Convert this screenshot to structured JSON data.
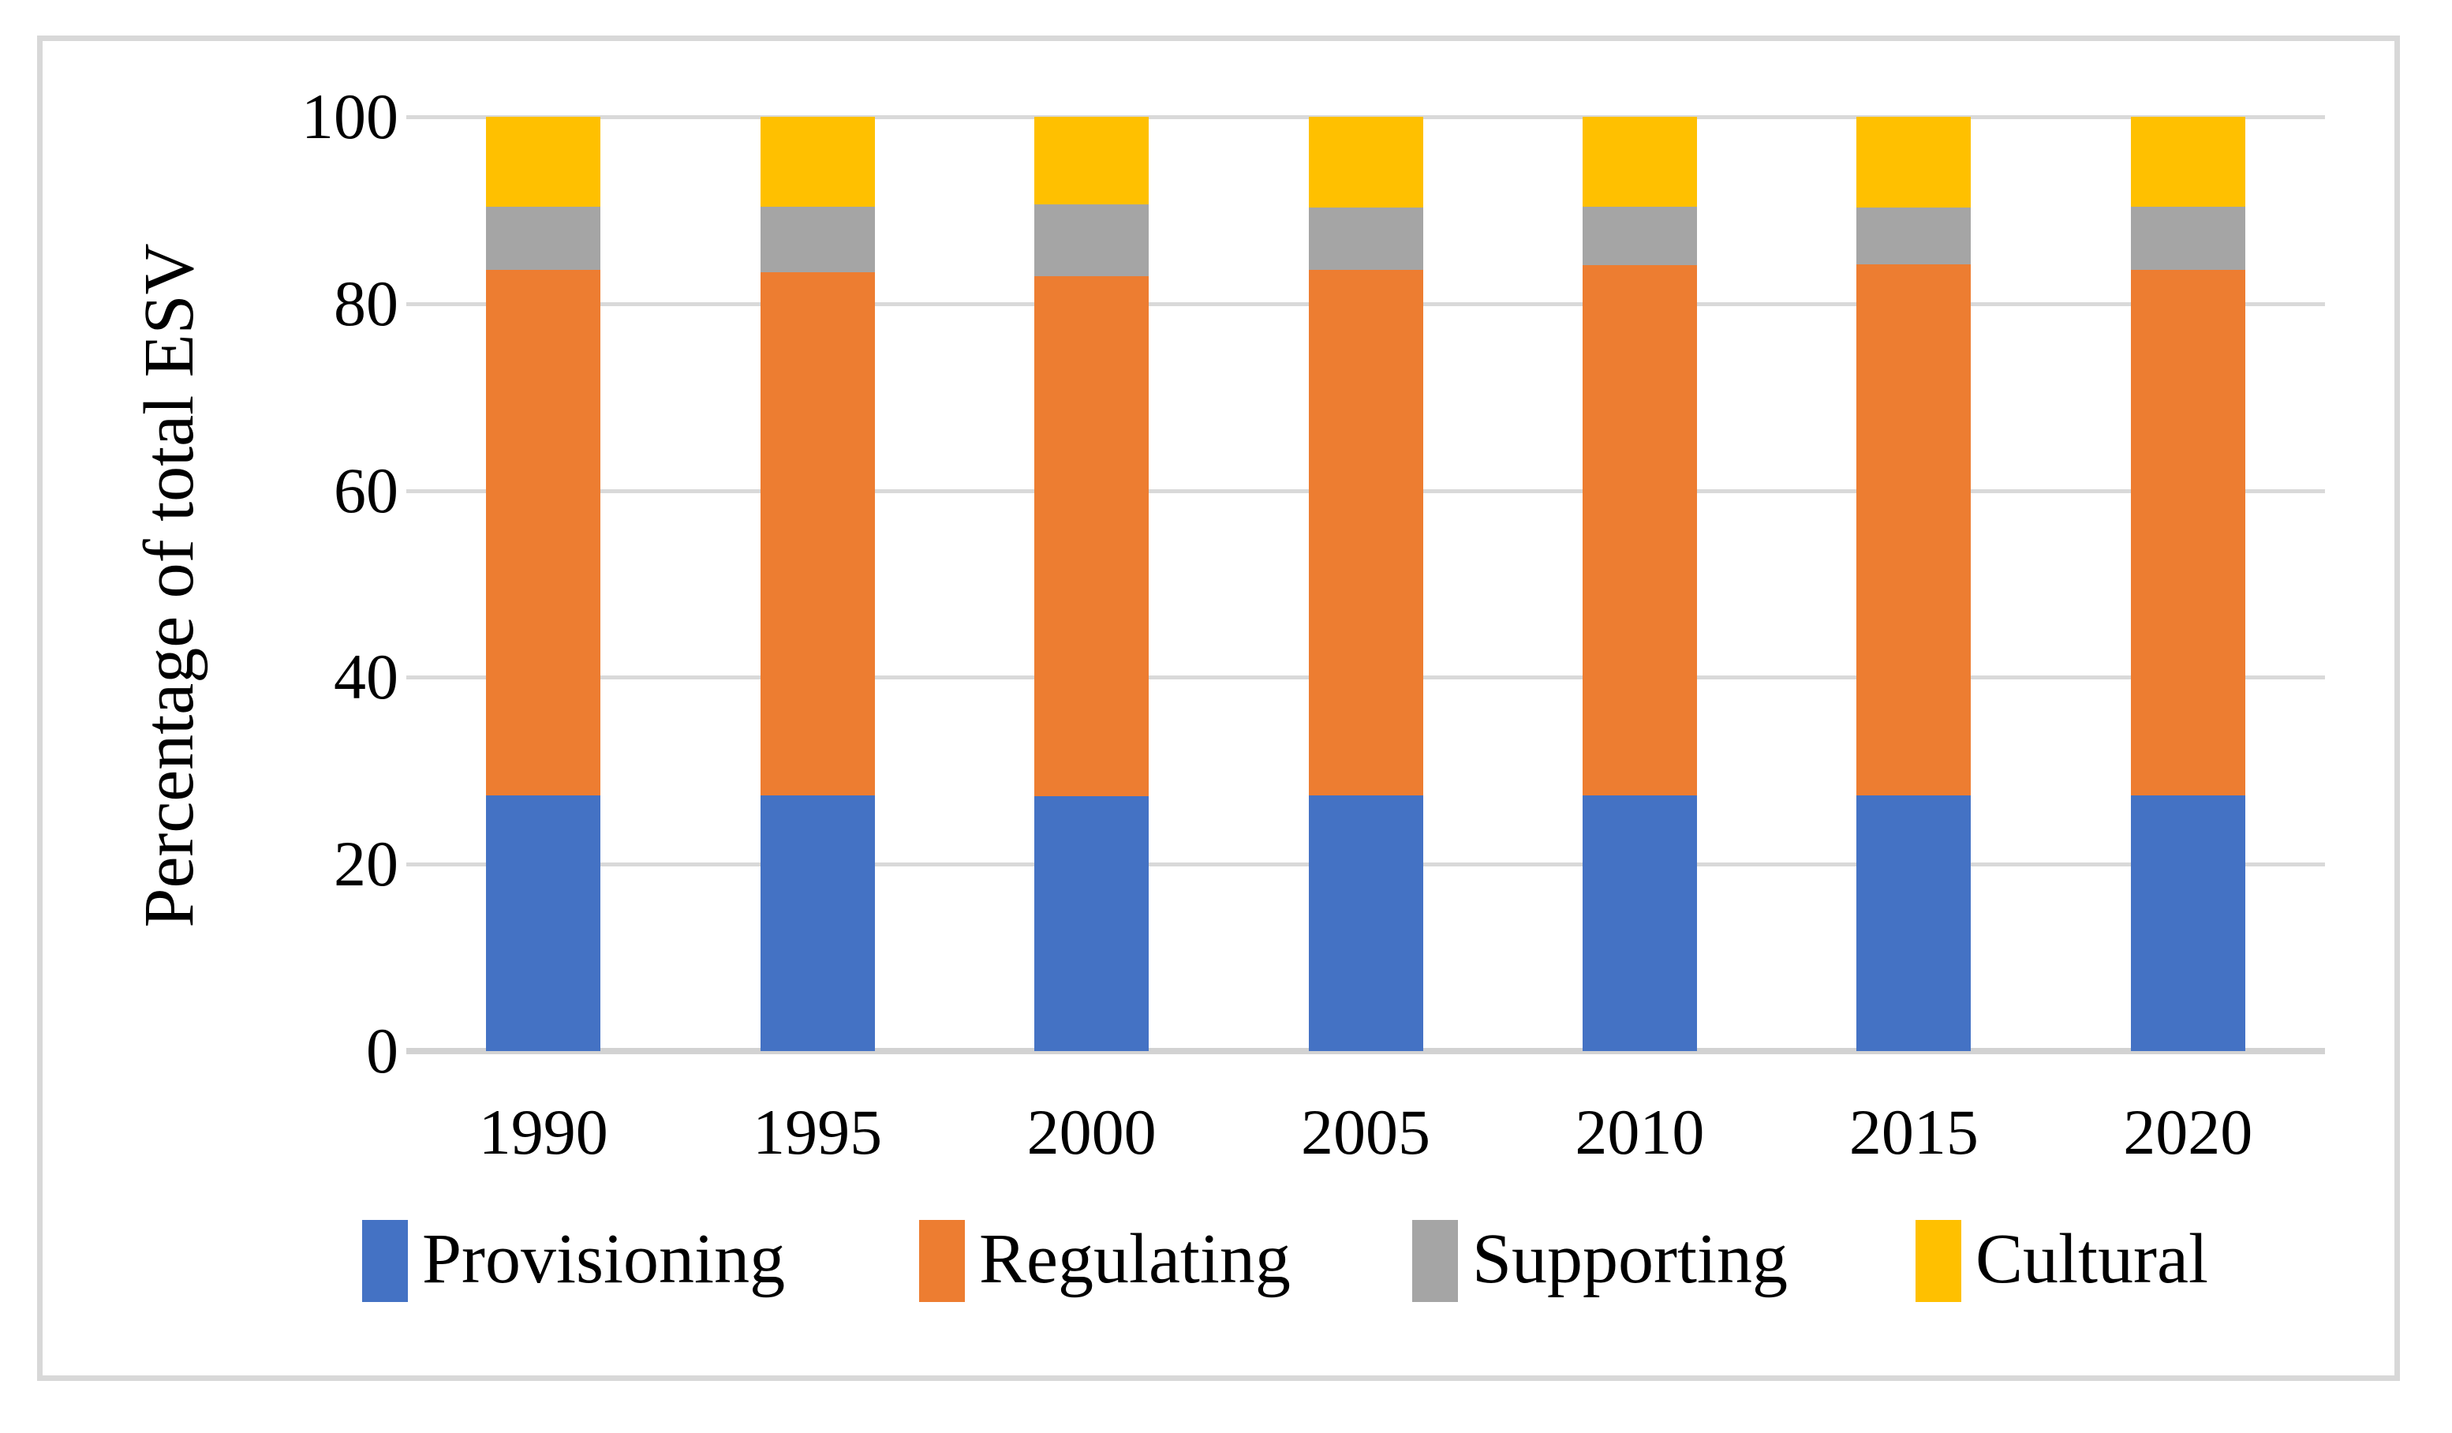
{
  "figure": {
    "kind": "stacked-column-figure",
    "background": "#ffffff",
    "frame_color": "#d8d8d8"
  },
  "chart_data": {
    "type": "bar",
    "stacked": true,
    "stacking": "percent",
    "title": "",
    "xlabel": "",
    "ylabel": "Percentage of total ESV",
    "ylim": [
      0,
      100
    ],
    "yticks": [
      0,
      20,
      40,
      60,
      80,
      100
    ],
    "grid": true,
    "gridline_color": "#d9d9d9",
    "axis_line_color": "#d2d2d2",
    "legend_position": "bottom",
    "units": "%",
    "categories": [
      "1990",
      "1995",
      "2000",
      "2005",
      "2010",
      "2015",
      "2020"
    ],
    "series": [
      {
        "name": "Provisioning",
        "color": "#4472C4",
        "values": [
          27.4,
          27.4,
          27.3,
          27.4,
          27.4,
          27.4,
          27.4
        ]
      },
      {
        "name": "Regulating",
        "color": "#ED7D31",
        "values": [
          56.2,
          56.0,
          55.6,
          56.2,
          56.7,
          56.8,
          56.2
        ]
      },
      {
        "name": "Supporting",
        "color": "#A5A5A5",
        "values": [
          6.8,
          7.0,
          7.7,
          6.7,
          6.3,
          6.1,
          6.8
        ]
      },
      {
        "name": "Cultural",
        "color": "#FFC000",
        "values": [
          9.6,
          9.6,
          9.4,
          9.7,
          9.6,
          9.7,
          9.6
        ]
      }
    ]
  }
}
